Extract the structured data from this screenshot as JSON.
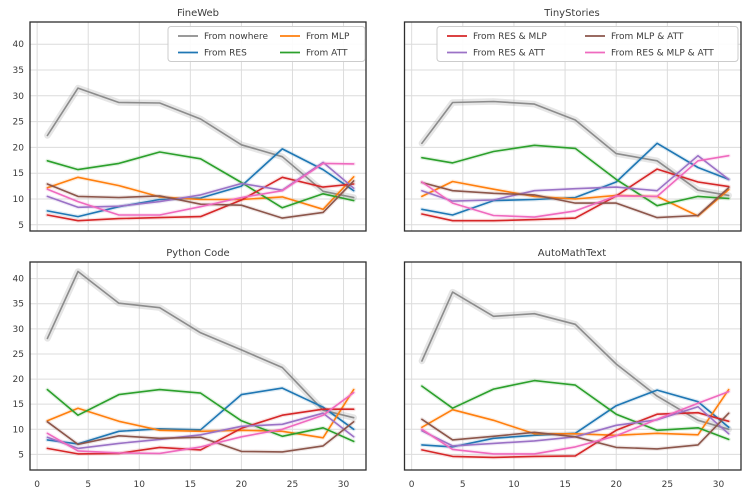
{
  "figure": {
    "background": "#ffffff",
    "grid_color": "#dcdcdc",
    "axes_border_color": "#2e2e2e",
    "tick_label_color": "#3b3b3b",
    "title_color": "#262626",
    "legend_border_color": "#cccccc",
    "legend_background": "#ffffff"
  },
  "series_colors": {
    "From nowhere": "#8c8c8c",
    "From RES": "#1f77b4",
    "From MLP": "#ff7f0e",
    "From ATT": "#2ca02c",
    "From RES & MLP": "#d62728",
    "From RES & ATT": "#9b72c6",
    "From MLP & ATT": "#8c564b",
    "From RES & MLP & ATT": "#ef6abf"
  },
  "chart_data": [
    {
      "type": "line",
      "title": "FineWeb",
      "grid": true,
      "x": [
        1,
        4,
        8,
        12,
        16,
        20,
        24,
        28,
        31
      ],
      "xticks": [
        0,
        5,
        10,
        15,
        20,
        25,
        30
      ],
      "yticks": [
        5,
        10,
        15,
        20,
        25,
        30,
        35,
        40
      ],
      "xlim": [
        -0.7,
        32.2
      ],
      "ylim": [
        3.8,
        44.3
      ],
      "show_xtick_labels": false,
      "show_ytick_labels": true,
      "legend": {
        "position": "upper-center",
        "entries": [
          "From nowhere",
          "From RES",
          "From MLP",
          "From ATT"
        ]
      },
      "series": [
        {
          "name": "From nowhere",
          "values": [
            22.3,
            31.5,
            28.7,
            28.6,
            25.5,
            20.5,
            18.2,
            11.5,
            10.3
          ]
        },
        {
          "name": "From RES",
          "values": [
            7.7,
            6.6,
            8.5,
            9.9,
            10.2,
            12.5,
            19.7,
            15.7,
            11.6
          ]
        },
        {
          "name": "From MLP",
          "values": [
            12.2,
            14.2,
            12.6,
            10.4,
            9.9,
            9.9,
            10.4,
            8.0,
            14.3
          ]
        },
        {
          "name": "From ATT",
          "values": [
            17.4,
            15.7,
            16.9,
            19.1,
            17.8,
            13.2,
            8.3,
            11.0,
            9.7
          ]
        },
        {
          "name": "From RES & MLP",
          "values": [
            6.9,
            5.8,
            6.2,
            6.4,
            6.6,
            9.8,
            14.2,
            12.3,
            12.9
          ]
        },
        {
          "name": "From RES & ATT",
          "values": [
            10.5,
            8.4,
            8.6,
            9.5,
            10.8,
            13.0,
            11.7,
            17.1,
            12.1
          ]
        },
        {
          "name": "From MLP & ATT",
          "values": [
            12.9,
            10.5,
            10.3,
            10.6,
            9.0,
            8.8,
            6.3,
            7.4,
            13.5
          ]
        },
        {
          "name": "From RES & MLP & ATT",
          "values": [
            11.9,
            9.5,
            6.9,
            6.9,
            8.5,
            10.3,
            11.6,
            16.9,
            16.8
          ]
        }
      ]
    },
    {
      "type": "line",
      "title": "TinyStories",
      "grid": true,
      "x": [
        1,
        4,
        8,
        12,
        16,
        20,
        24,
        28,
        31
      ],
      "xticks": [
        0,
        5,
        10,
        15,
        20,
        25,
        30
      ],
      "yticks": [
        5,
        10,
        15,
        20,
        25,
        30,
        35,
        40
      ],
      "xlim": [
        -0.7,
        32.2
      ],
      "ylim": [
        3.8,
        44.3
      ],
      "show_xtick_labels": false,
      "show_ytick_labels": false,
      "legend": {
        "position": "upper-center",
        "entries": [
          "From RES & MLP",
          "From RES & ATT",
          "From MLP & ATT",
          "From RES & MLP & ATT"
        ]
      },
      "series": [
        {
          "name": "From nowhere",
          "values": [
            20.8,
            28.7,
            28.9,
            28.4,
            25.3,
            18.8,
            17.4,
            11.7,
            10.7
          ]
        },
        {
          "name": "From RES",
          "values": [
            8.0,
            6.9,
            9.7,
            9.9,
            10.3,
            13.3,
            20.8,
            16.1,
            13.8
          ]
        },
        {
          "name": "From MLP",
          "values": [
            10.5,
            13.4,
            11.9,
            10.5,
            10.0,
            10.7,
            10.5,
            6.7,
            11.8
          ]
        },
        {
          "name": "From ATT",
          "values": [
            18.0,
            17.0,
            19.2,
            20.4,
            19.8,
            13.8,
            8.7,
            10.5,
            10.1
          ]
        },
        {
          "name": "From RES & MLP",
          "values": [
            7.1,
            5.8,
            5.8,
            6.0,
            6.3,
            10.6,
            15.8,
            13.3,
            12.4
          ]
        },
        {
          "name": "From RES & ATT",
          "values": [
            11.6,
            9.6,
            9.8,
            11.6,
            12.0,
            12.3,
            11.6,
            18.4,
            13.8
          ]
        },
        {
          "name": "From MLP & ATT",
          "values": [
            13.2,
            11.6,
            11.1,
            10.8,
            9.2,
            9.2,
            6.4,
            6.8,
            12.2
          ]
        },
        {
          "name": "From RES & MLP & ATT",
          "values": [
            13.3,
            9.2,
            6.8,
            6.5,
            7.7,
            10.6,
            10.5,
            17.4,
            18.4
          ]
        }
      ]
    },
    {
      "type": "line",
      "title": "Python Code",
      "grid": true,
      "x": [
        1,
        4,
        8,
        12,
        16,
        20,
        24,
        28,
        31
      ],
      "xticks": [
        0,
        5,
        10,
        15,
        20,
        25,
        30
      ],
      "yticks": [
        5,
        10,
        15,
        20,
        25,
        30,
        35,
        40
      ],
      "xlim": [
        -0.7,
        32.2
      ],
      "ylim": [
        1.9,
        43.3
      ],
      "show_xtick_labels": true,
      "show_ytick_labels": true,
      "legend": null,
      "series": [
        {
          "name": "From nowhere",
          "values": [
            28.1,
            41.4,
            35.1,
            34.2,
            29.2,
            25.8,
            22.3,
            13.8,
            12.3
          ]
        },
        {
          "name": "From RES",
          "values": [
            7.9,
            7.1,
            9.6,
            10.1,
            9.9,
            16.9,
            18.2,
            14.4,
            10.0
          ]
        },
        {
          "name": "From MLP",
          "values": [
            11.7,
            14.2,
            11.6,
            9.8,
            9.6,
            9.8,
            9.6,
            8.3,
            17.9
          ]
        },
        {
          "name": "From ATT",
          "values": [
            17.9,
            12.8,
            16.9,
            17.9,
            17.2,
            11.7,
            8.6,
            10.3,
            7.6
          ]
        },
        {
          "name": "From RES & MLP",
          "values": [
            6.2,
            5.1,
            5.2,
            6.4,
            5.9,
            10.2,
            12.8,
            14.0,
            14.0
          ]
        },
        {
          "name": "From RES & ATT",
          "values": [
            8.4,
            6.2,
            7.2,
            8.0,
            8.9,
            10.6,
            11.0,
            13.2,
            8.5
          ]
        },
        {
          "name": "From MLP & ATT",
          "values": [
            11.5,
            7.0,
            8.7,
            8.2,
            8.4,
            5.6,
            5.5,
            6.7,
            11.5
          ]
        },
        {
          "name": "From RES & MLP & ATT",
          "values": [
            9.2,
            5.7,
            5.3,
            5.2,
            6.5,
            8.5,
            10.0,
            12.8,
            17.3
          ]
        }
      ]
    },
    {
      "type": "line",
      "title": "AutoMathText",
      "grid": true,
      "x": [
        1,
        4,
        8,
        12,
        16,
        20,
        24,
        28,
        31
      ],
      "xticks": [
        0,
        5,
        10,
        15,
        20,
        25,
        30
      ],
      "yticks": [
        5,
        10,
        15,
        20,
        25,
        30,
        35,
        40
      ],
      "xlim": [
        -0.7,
        32.2
      ],
      "ylim": [
        1.9,
        43.3
      ],
      "show_xtick_labels": true,
      "show_ytick_labels": false,
      "legend": null,
      "series": [
        {
          "name": "From nowhere",
          "values": [
            23.6,
            37.3,
            32.5,
            33.0,
            30.9,
            23.0,
            16.6,
            11.8,
            10.0
          ]
        },
        {
          "name": "From RES",
          "values": [
            6.9,
            6.5,
            8.2,
            8.8,
            9.2,
            14.7,
            17.8,
            15.5,
            10.4
          ]
        },
        {
          "name": "From MLP",
          "values": [
            10.4,
            13.9,
            11.8,
            9.1,
            9.1,
            8.8,
            9.2,
            8.9,
            17.9
          ]
        },
        {
          "name": "From ATT",
          "values": [
            18.6,
            14.2,
            18.0,
            19.7,
            18.8,
            13.0,
            9.8,
            10.3,
            8.0
          ]
        },
        {
          "name": "From RES & MLP",
          "values": [
            5.9,
            4.6,
            4.4,
            4.6,
            4.7,
            9.8,
            13.0,
            13.3,
            11.6
          ]
        },
        {
          "name": "From RES & ATT",
          "values": [
            9.7,
            6.7,
            7.2,
            7.7,
            8.5,
            10.8,
            11.9,
            14.5,
            9.1
          ]
        },
        {
          "name": "From MLP & ATT",
          "values": [
            12.0,
            7.9,
            8.6,
            9.4,
            8.5,
            6.4,
            6.1,
            6.9,
            13.2
          ]
        },
        {
          "name": "From RES & MLP & ATT",
          "values": [
            10.0,
            6.0,
            5.1,
            5.1,
            6.5,
            8.7,
            12.0,
            15.2,
            17.5
          ]
        }
      ]
    }
  ]
}
